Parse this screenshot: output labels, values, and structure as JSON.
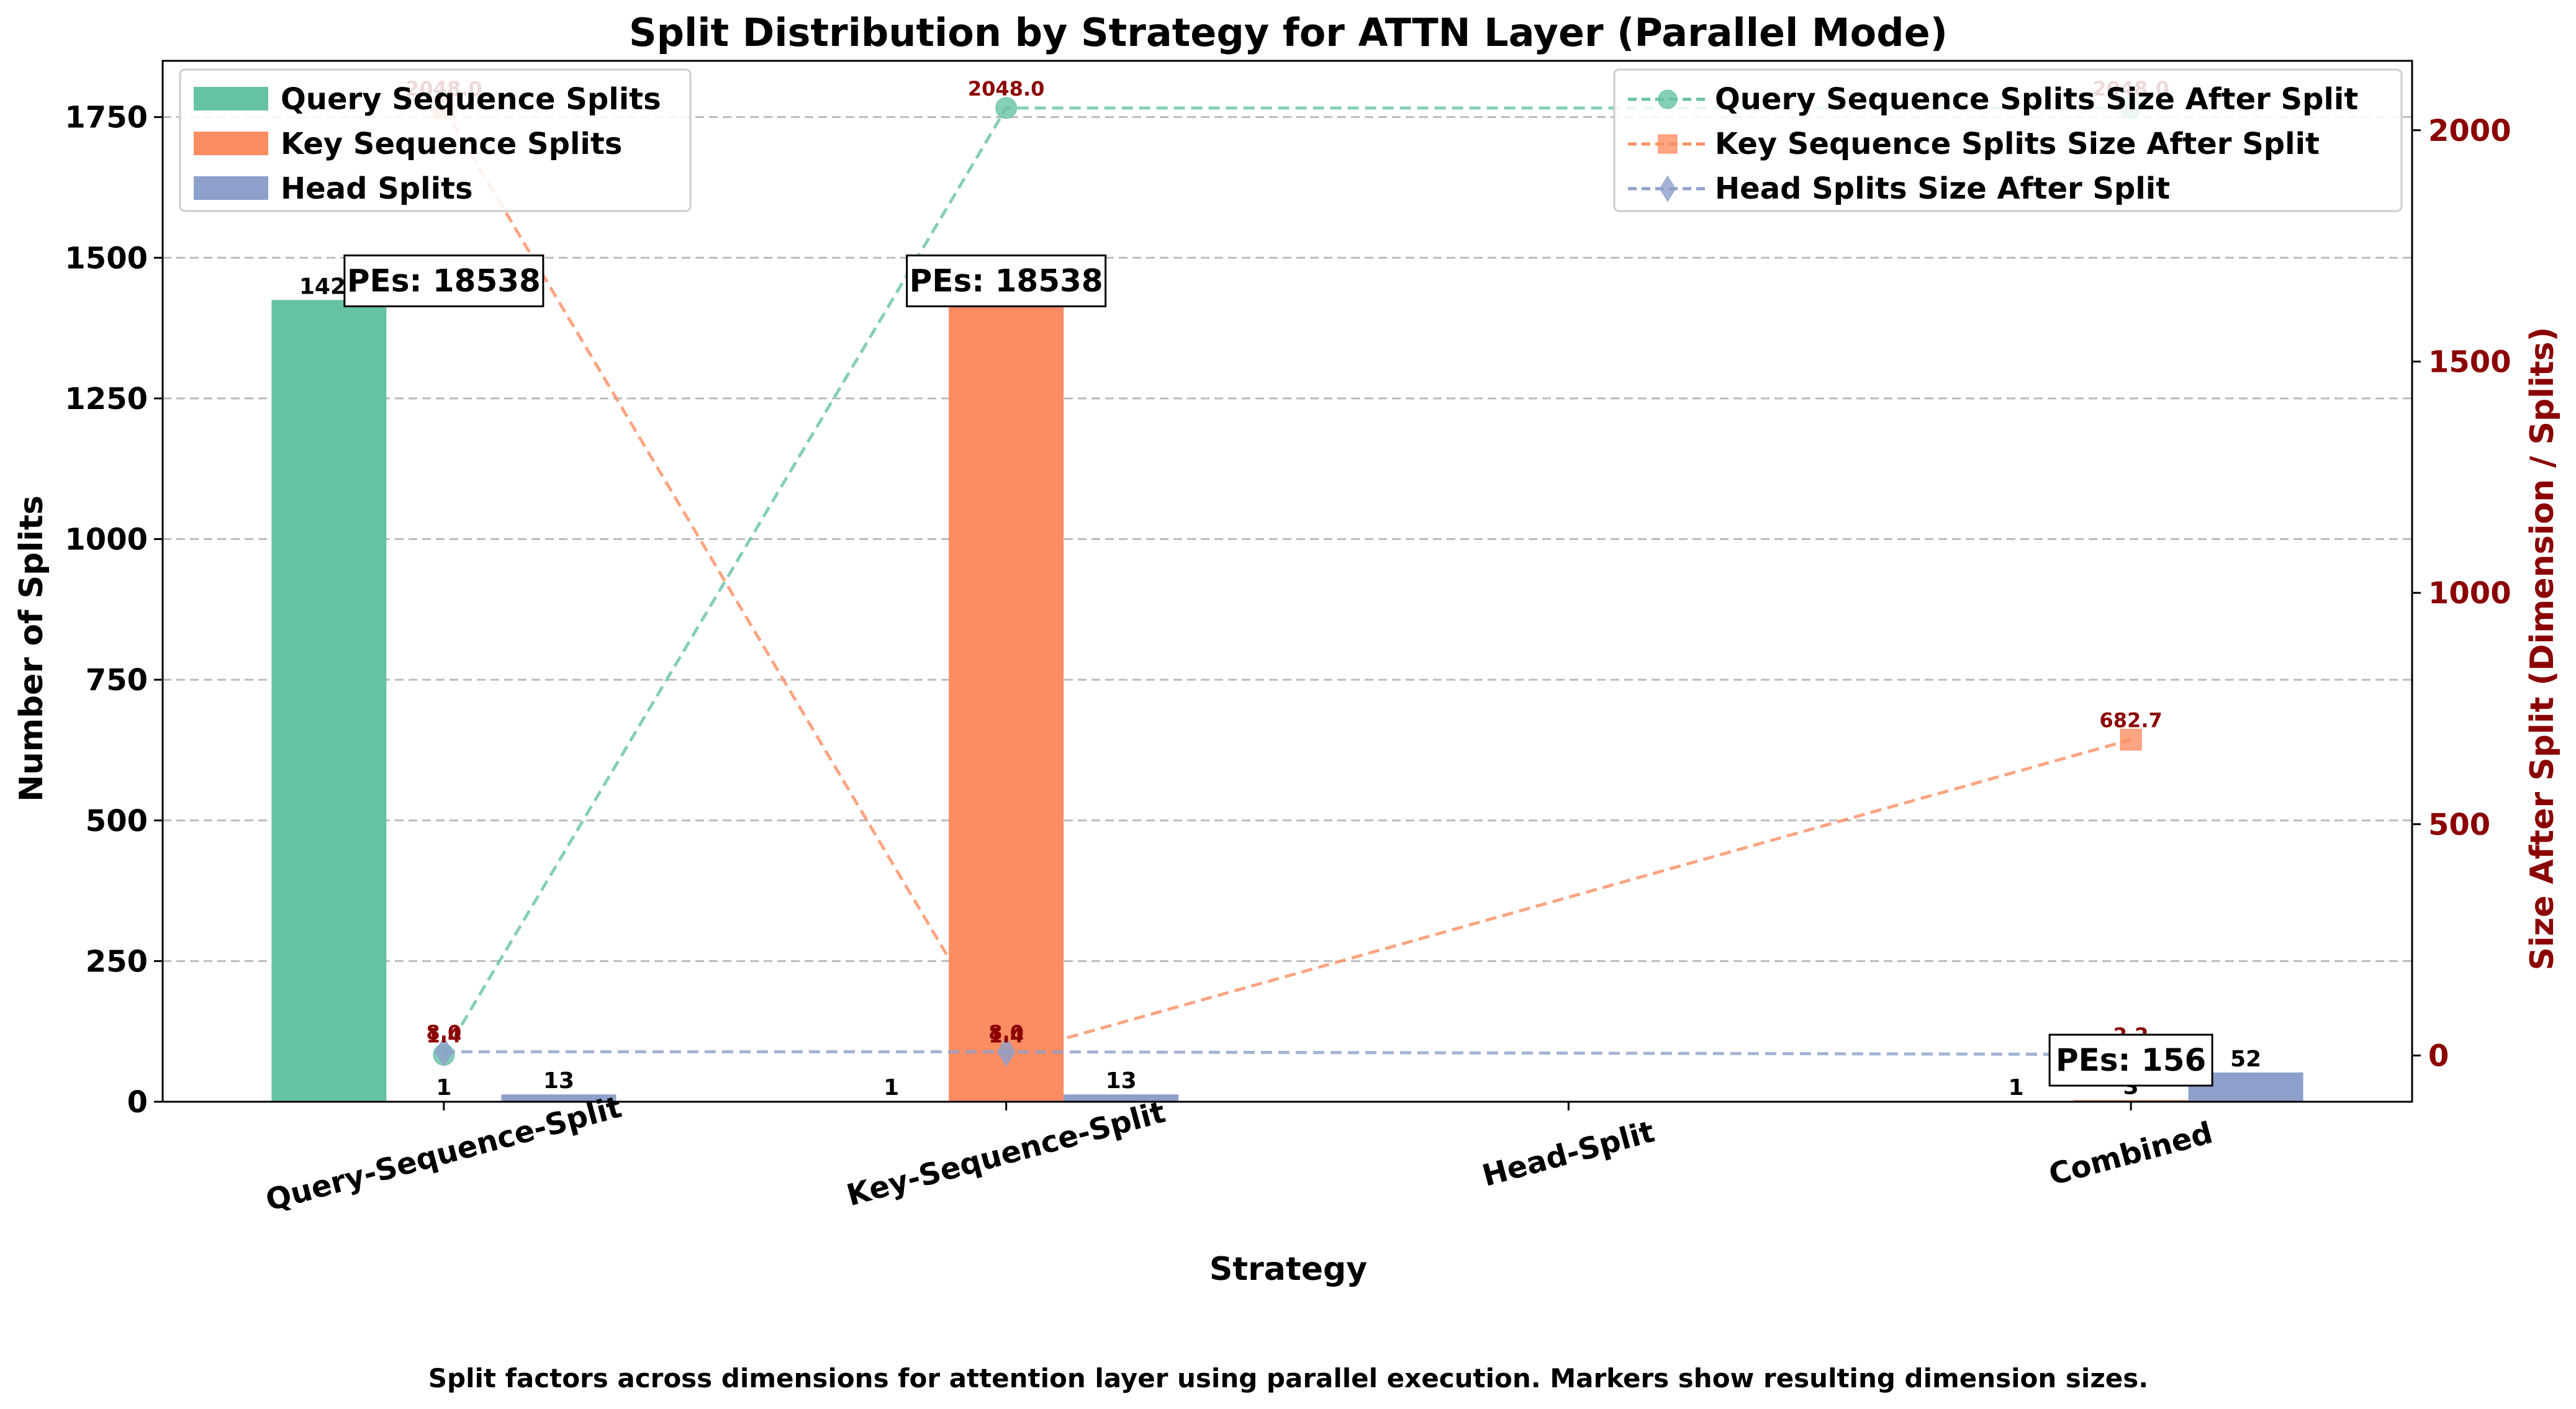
{
  "chart_data": {
    "type": "bar",
    "title": "Split Distribution by Strategy for ATTN Layer (Parallel Mode)",
    "xlabel": "Strategy",
    "ylabel": "Number of Splits",
    "y2label": "Size After Split (Dimension / Splits)",
    "caption": "Split factors across dimensions for attention layer using parallel execution. Markers show resulting dimension sizes.",
    "categories": [
      "Query-Sequence-Split",
      "Key-Sequence-Split",
      "Head-Split",
      "Combined"
    ],
    "ylim": [
      0,
      1850
    ],
    "yticks": [
      0,
      250,
      500,
      750,
      1000,
      1250,
      1500,
      1750
    ],
    "y2lim": [
      -100,
      2150
    ],
    "y2ticks": [
      0,
      500,
      1000,
      1500,
      2000
    ],
    "grid": true,
    "series": [
      {
        "name": "Query Sequence Splits",
        "color": "#66c2a5",
        "values": [
          1425,
          1,
          null,
          1
        ],
        "labels": [
          "142?",
          "1",
          "",
          "1"
        ]
      },
      {
        "name": "Key Sequence Splits",
        "color": "#fc8d62",
        "values": [
          1,
          1425,
          null,
          3
        ],
        "labels": [
          "1",
          "14?",
          "",
          "3"
        ]
      },
      {
        "name": "Head Splits",
        "color": "#8da0cb",
        "values": [
          13,
          13,
          null,
          52
        ],
        "labels": [
          "13",
          "13",
          "",
          "52"
        ]
      }
    ],
    "line_series": [
      {
        "name": "Query Sequence Splits Size After Split",
        "color": "#66c2a5",
        "marker": "circle",
        "values": [
          1.4,
          2048.0,
          null,
          2048.0
        ],
        "labels": [
          "1.4",
          "2048.0",
          "",
          "2048.0"
        ]
      },
      {
        "name": "Key Sequence Splits Size After Split",
        "color": "#fc8d62",
        "marker": "square",
        "values": [
          2048.0,
          1.4,
          null,
          682.7
        ],
        "labels": [
          "2048.0",
          "1.4",
          "",
          "682.7"
        ]
      },
      {
        "name": "Head Splits Size After Split",
        "color": "#8da0cb",
        "marker": "diamond",
        "values": [
          8.0,
          8.0,
          null,
          2.2
        ],
        "labels": [
          "8.0",
          "8.0",
          "",
          "2.2"
        ]
      }
    ],
    "annotations": [
      {
        "category": "Query-Sequence-Split",
        "text": "PEs: 18538"
      },
      {
        "category": "Key-Sequence-Split",
        "text": "PEs: 18538"
      },
      {
        "category": "Combined",
        "text": "PEs: 156"
      }
    ],
    "legend": {
      "bars": "top-left",
      "lines": "top-right"
    },
    "colors": {
      "secondary_axis": "#8b0000",
      "grid": "#bbbbbb"
    }
  }
}
